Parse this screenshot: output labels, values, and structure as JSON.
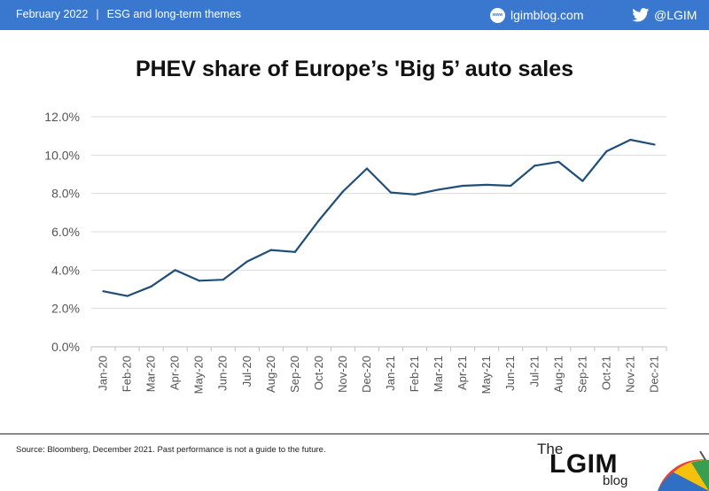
{
  "header": {
    "date": "February 2022",
    "separator": "|",
    "section": "ESG and long-term themes",
    "site": "lgimblog.com",
    "globe_text": "www",
    "twitter_handle": "@LGIM",
    "bar_color": "#3a78cf"
  },
  "chart_data": {
    "type": "line",
    "title": "PHEV share of Europe’s 'Big 5’ auto sales",
    "xlabel": "",
    "ylabel": "",
    "categories": [
      "Jan-20",
      "Feb-20",
      "Mar-20",
      "Apr-20",
      "May-20",
      "Jun-20",
      "Jul-20",
      "Aug-20",
      "Sep-20",
      "Oct-20",
      "Nov-20",
      "Dec-20",
      "Jan-21",
      "Feb-21",
      "Mar-21",
      "Apr-21",
      "May-21",
      "Jun-21",
      "Jul-21",
      "Aug-21",
      "Sep-21",
      "Oct-21",
      "Nov-21",
      "Dec-21"
    ],
    "series": [
      {
        "values": [
          2.9,
          2.65,
          3.15,
          4.0,
          3.45,
          3.5,
          4.45,
          5.05,
          4.95,
          6.6,
          8.1,
          9.3,
          8.05,
          7.95,
          8.2,
          8.4,
          8.45,
          8.4,
          9.45,
          9.65,
          8.65,
          10.2,
          10.8,
          10.55
        ],
        "color": "#1f4e79"
      }
    ],
    "ylim": [
      0,
      12
    ],
    "yticks": [
      "0.0%",
      "2.0%",
      "4.0%",
      "6.0%",
      "8.0%",
      "10.0%",
      "12.0%"
    ],
    "grid": true
  },
  "footer": {
    "source": "Source: Bloomberg, December 2021. Past performance is not a guide to the future."
  },
  "logo": {
    "the": "The",
    "lgim": "LGIM",
    "blog": "blog"
  }
}
